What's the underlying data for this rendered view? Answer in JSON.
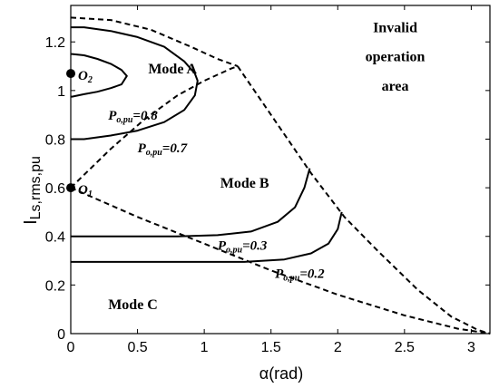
{
  "chart_data": {
    "type": "line",
    "xlabel": "α(rad)",
    "ylabel": "I",
    "ylabel_sub": "Ls,rms,pu",
    "xlim": [
      0,
      3.14
    ],
    "ylim": [
      0,
      1.35
    ],
    "xticks": [
      "0",
      "0.5",
      "1",
      "1.5",
      "2",
      "2.5",
      "3"
    ],
    "xtick_values": [
      0,
      0.5,
      1,
      1.5,
      2,
      2.5,
      3
    ],
    "yticks": [
      "0",
      "0.2",
      "0.4",
      "0.6",
      "0.8",
      "1",
      "1.2"
    ],
    "ytick_values": [
      0,
      0.2,
      0.4,
      0.6,
      0.8,
      1.0,
      1.2
    ],
    "grid": false,
    "series": [
      {
        "style": "solid",
        "x": [
          0,
          0.01,
          0.1,
          0.2,
          0.3,
          0.38,
          0.42,
          0.38,
          0.3,
          0.2,
          0.1,
          0.01,
          0
        ],
        "y": [
          1.15,
          1.15,
          1.145,
          1.13,
          1.11,
          1.085,
          1.06,
          1.025,
          1.01,
          0.995,
          0.985,
          0.975,
          0.975
        ]
      },
      {
        "style": "solid",
        "x": [
          0,
          0.1,
          0.3,
          0.5,
          0.7,
          0.85,
          0.93,
          0.95,
          0.93,
          0.85,
          0.7,
          0.5,
          0.3,
          0.1,
          0
        ],
        "y": [
          1.26,
          1.26,
          1.245,
          1.22,
          1.18,
          1.12,
          1.07,
          1.04,
          0.98,
          0.92,
          0.87,
          0.835,
          0.815,
          0.8,
          0.8
        ]
      },
      {
        "style": "solid",
        "x": [
          0,
          0.5,
          0.8,
          1.1,
          1.35,
          1.55,
          1.68,
          1.75,
          1.79
        ],
        "y": [
          0.4,
          0.4,
          0.4,
          0.405,
          0.42,
          0.46,
          0.52,
          0.6,
          0.68
        ]
      },
      {
        "style": "solid",
        "x": [
          0,
          0.5,
          1.0,
          1.3,
          1.6,
          1.8,
          1.93,
          2.0,
          2.03
        ],
        "y": [
          0.295,
          0.295,
          0.295,
          0.295,
          0.305,
          0.33,
          0.37,
          0.43,
          0.5
        ]
      },
      {
        "style": "dashed",
        "x": [
          0,
          0.3,
          0.6,
          0.9,
          1.1,
          1.25
        ],
        "y": [
          1.3,
          1.29,
          1.25,
          1.18,
          1.13,
          1.1
        ]
      },
      {
        "style": "dashed",
        "x": [
          1.25,
          1.5,
          1.8,
          2.05,
          2.3,
          2.6,
          2.85,
          3.05,
          3.14
        ],
        "y": [
          1.1,
          0.9,
          0.66,
          0.48,
          0.34,
          0.18,
          0.07,
          0.015,
          0
        ]
      },
      {
        "style": "dashed",
        "x": [
          0,
          0.3,
          0.55,
          0.8,
          1.0,
          1.2,
          1.25
        ],
        "y": [
          0.6,
          0.76,
          0.88,
          0.98,
          1.04,
          1.09,
          1.1
        ]
      },
      {
        "style": "dashed",
        "x": [
          0,
          0.5,
          1.0,
          1.5,
          2.0,
          2.5,
          2.9,
          3.14
        ],
        "y": [
          0.6,
          0.48,
          0.37,
          0.26,
          0.16,
          0.075,
          0.02,
          0
        ]
      }
    ],
    "points": [
      {
        "label": "O",
        "sub": "2",
        "x": 0,
        "y": 1.07
      },
      {
        "label": "O",
        "sub": "1",
        "x": 0,
        "y": 0.6
      }
    ],
    "regions": [
      {
        "text": "Mode A",
        "x": 0.58,
        "y": 1.07
      },
      {
        "text": "Mode B",
        "x": 1.12,
        "y": 0.6
      },
      {
        "text": "Mode C",
        "x": 0.28,
        "y": 0.1
      }
    ],
    "invalid_region": {
      "lines": [
        "Invalid",
        "operation",
        "area"
      ],
      "x": 2.43,
      "y": [
        1.24,
        1.12,
        1.0
      ]
    },
    "annotations": [
      {
        "base": "P",
        "sub": "o,pu",
        "value": "=0.8",
        "x": 0.28,
        "y": 0.88
      },
      {
        "base": "P",
        "sub": "o,pu",
        "value": "=0.7",
        "x": 0.5,
        "y": 0.745
      },
      {
        "base": "P",
        "sub": "o,pu",
        "value": "=0.3",
        "x": 1.1,
        "y": 0.345
      },
      {
        "base": "P",
        "sub": "o,pu",
        "value": "=0.2",
        "x": 1.53,
        "y": 0.23
      }
    ]
  }
}
